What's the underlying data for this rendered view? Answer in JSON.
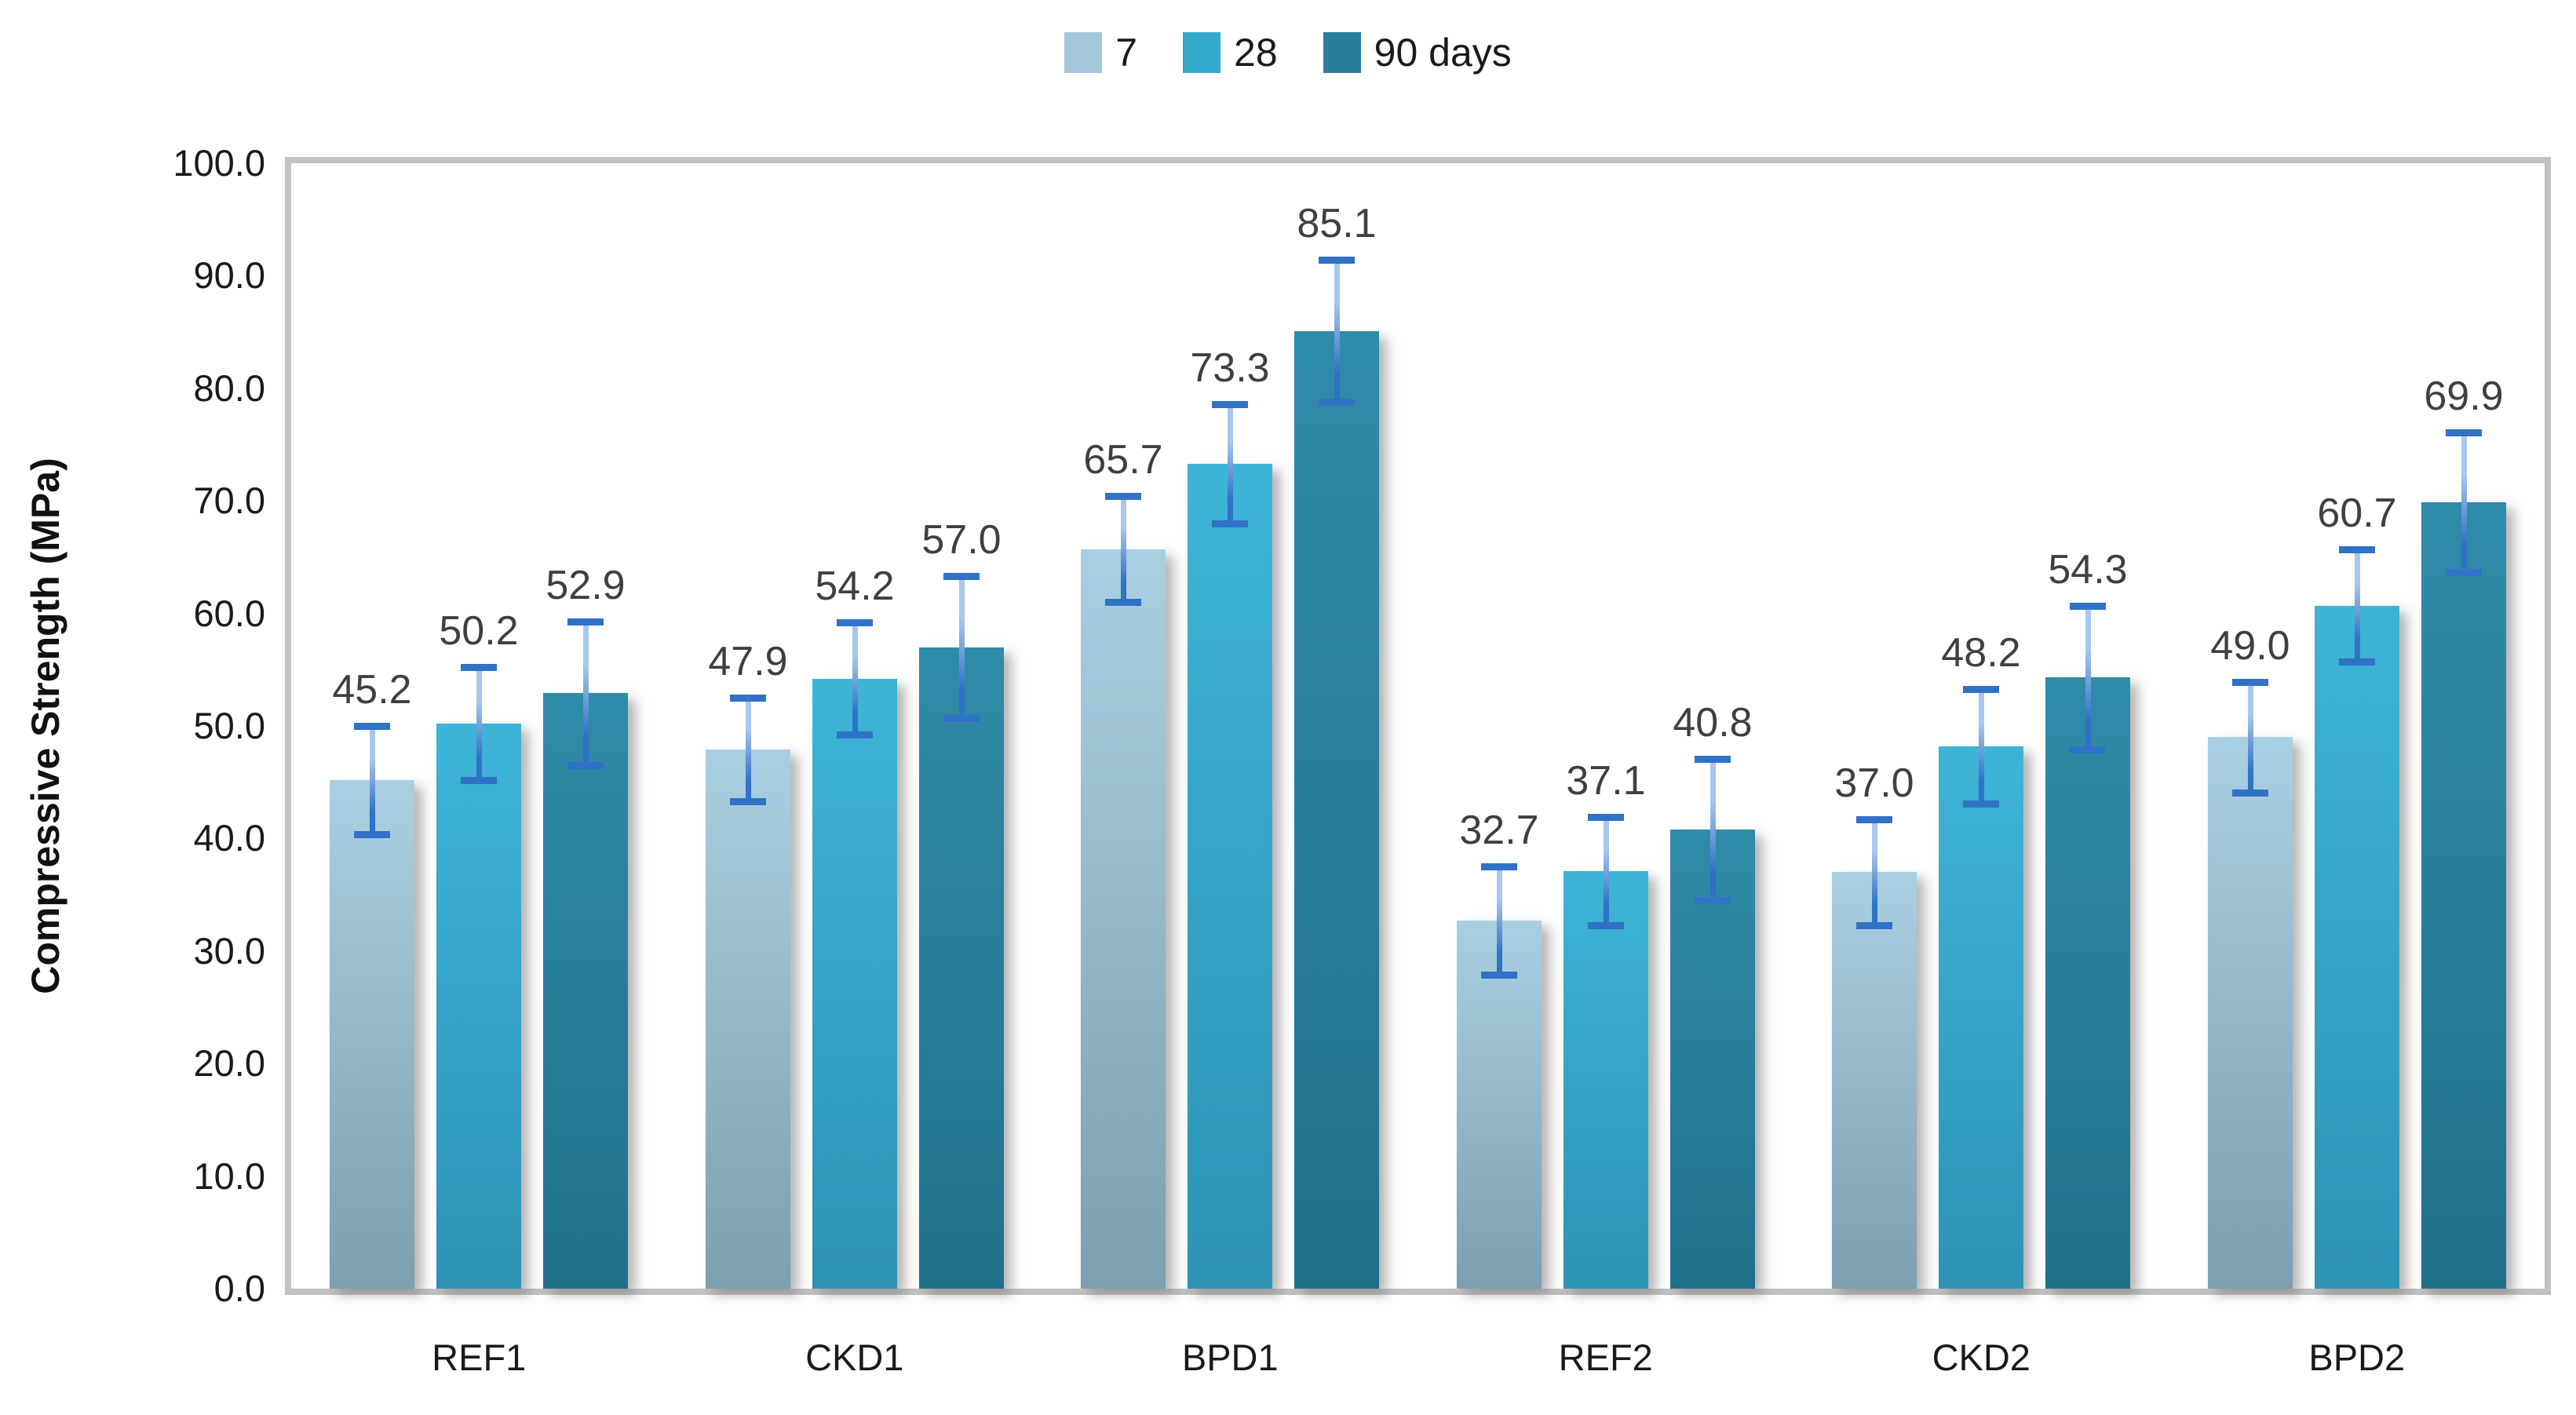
{
  "chart_data": {
    "type": "bar",
    "title": "",
    "xlabel": "",
    "ylabel": "Compressive Strength (MPa)",
    "categories": [
      "REF1",
      "CKD1",
      "BPD1",
      "REF2",
      "CKD2",
      "BPD2"
    ],
    "series": [
      {
        "name": "7",
        "values": [
          45.2,
          47.9,
          65.7,
          32.7,
          37.0,
          49.0
        ],
        "errors": [
          4.8,
          4.6,
          4.7,
          4.8,
          4.7,
          4.9
        ]
      },
      {
        "name": "28",
        "values": [
          50.2,
          54.2,
          73.3,
          37.1,
          48.2,
          60.7
        ],
        "errors": [
          5.0,
          5.0,
          5.3,
          4.8,
          5.1,
          5.0
        ]
      },
      {
        "name": "90 days",
        "values": [
          52.9,
          57.0,
          85.1,
          40.8,
          54.3,
          69.9
        ],
        "errors": [
          6.4,
          6.3,
          6.3,
          6.3,
          6.4,
          6.2
        ]
      }
    ],
    "data_labels": [
      [
        "45.2",
        "47.9",
        "65.7",
        "32.7",
        "37.0",
        "49.0"
      ],
      [
        "50.2",
        "54.2",
        "73.3",
        "37.1",
        "48.2",
        "60.7"
      ],
      [
        "52.9",
        "57.0",
        "85.1",
        "40.8",
        "54.3",
        "69.9"
      ]
    ],
    "ylim": [
      0,
      100
    ],
    "ytick_step": 10,
    "ytick_labels": [
      "0.0",
      "10.0",
      "20.0",
      "30.0",
      "40.0",
      "50.0",
      "60.0",
      "70.0",
      "80.0",
      "90.0",
      "100.0"
    ],
    "grid": false,
    "legend_position": "top",
    "error_bars": true
  },
  "legend": {
    "items": [
      {
        "label": "7",
        "color": "#A3C7DA"
      },
      {
        "label": "28",
        "color": "#34A9CC"
      },
      {
        "label": "90 days",
        "color": "#2A7E9C"
      }
    ]
  },
  "y_axis": {
    "title": "Compressive Strength (MPa)"
  },
  "colors": {
    "series_gradients": [
      {
        "top": "#A9D0E2",
        "bottom": "#7BA0B1"
      },
      {
        "top": "#3DB4D7",
        "bottom": "#2E93B4"
      },
      {
        "top": "#2F8CA8",
        "bottom": "#21708B"
      }
    ],
    "error_cap": "#2F72C6",
    "error_line_top": "#A9C6EE",
    "error_line_bottom": "#2F72C6",
    "frame": "#C2C2C2",
    "data_label_text": "#3F3F3F",
    "axis_text": "#1A1A1A"
  }
}
